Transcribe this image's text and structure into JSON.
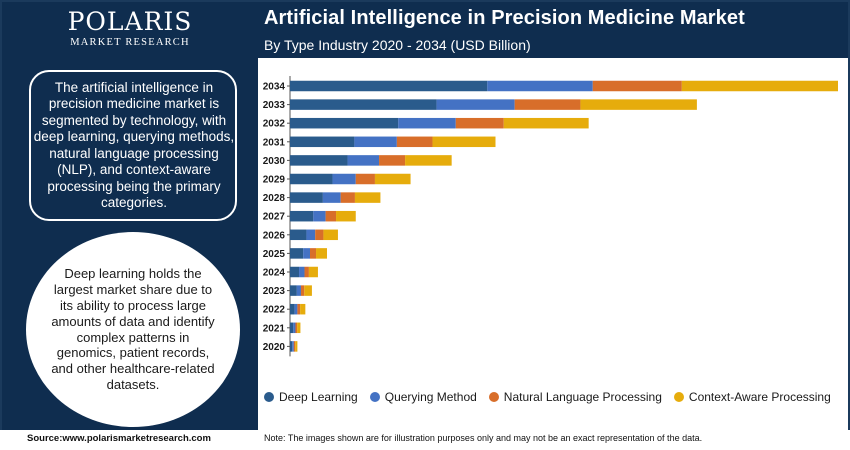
{
  "brand": {
    "name": "POLARIS",
    "sub": "MARKET RESEARCH"
  },
  "sidebar": {
    "info_text": "The artificial intelligence in precision medicine market is segmented by technology, with deep learning, querying methods, natural language processing (NLP), and context-aware processing being the primary categories.",
    "circle_text": "Deep learning holds the largest market share due to its ability to process large amounts of data and identify complex patterns in genomics, patient records, and other healthcare-related datasets."
  },
  "footer": {
    "source": "Source:www.polarismarketresearch.com",
    "note": "Note: The images shown are for illustration purposes only and may not be an exact representation of the data."
  },
  "colors": {
    "navy": "#0f2d4f",
    "deep_learning": "#2a5b8c",
    "querying_method": "#4472c4",
    "nlp": "#d86e2a",
    "context_aware": "#e6ac0c"
  },
  "chart_data": {
    "type": "bar",
    "orientation": "horizontal",
    "stacked": true,
    "title": "Artificial Intelligence in Precision Medicine Market",
    "subtitle": "By Type Industry 2020 - 2034 (USD Billion)",
    "xlabel": "",
    "ylabel": "",
    "grid": false,
    "legend_position": "bottom",
    "categories": [
      "2034",
      "2033",
      "2032",
      "2031",
      "2030",
      "2029",
      "2028",
      "2027",
      "2026",
      "2025",
      "2024",
      "2023",
      "2022",
      "2021",
      "2020"
    ],
    "series": [
      {
        "name": "Deep Learning",
        "color": "#2a5b8c",
        "values": [
          7.2,
          5.35,
          3.95,
          2.35,
          2.1,
          1.55,
          1.2,
          0.85,
          0.6,
          0.48,
          0.33,
          0.25,
          0.17,
          0.12,
          0.08
        ]
      },
      {
        "name": "Querying Method",
        "color": "#4472c4",
        "values": [
          3.85,
          2.85,
          2.1,
          1.55,
          1.15,
          0.85,
          0.65,
          0.45,
          0.32,
          0.25,
          0.2,
          0.15,
          0.1,
          0.08,
          0.06
        ]
      },
      {
        "name": "Natural Language Processing",
        "color": "#d86e2a",
        "values": [
          3.25,
          2.4,
          1.75,
          1.3,
          0.95,
          0.7,
          0.52,
          0.38,
          0.3,
          0.22,
          0.16,
          0.12,
          0.1,
          0.06,
          0.05
        ]
      },
      {
        "name": "Context-Aware Processing",
        "color": "#e6ac0c",
        "values": [
          5.7,
          4.25,
          3.1,
          2.3,
          1.7,
          1.3,
          0.93,
          0.72,
          0.53,
          0.4,
          0.33,
          0.28,
          0.19,
          0.12,
          0.08
        ]
      }
    ],
    "xlim": [
      0,
      20
    ]
  }
}
